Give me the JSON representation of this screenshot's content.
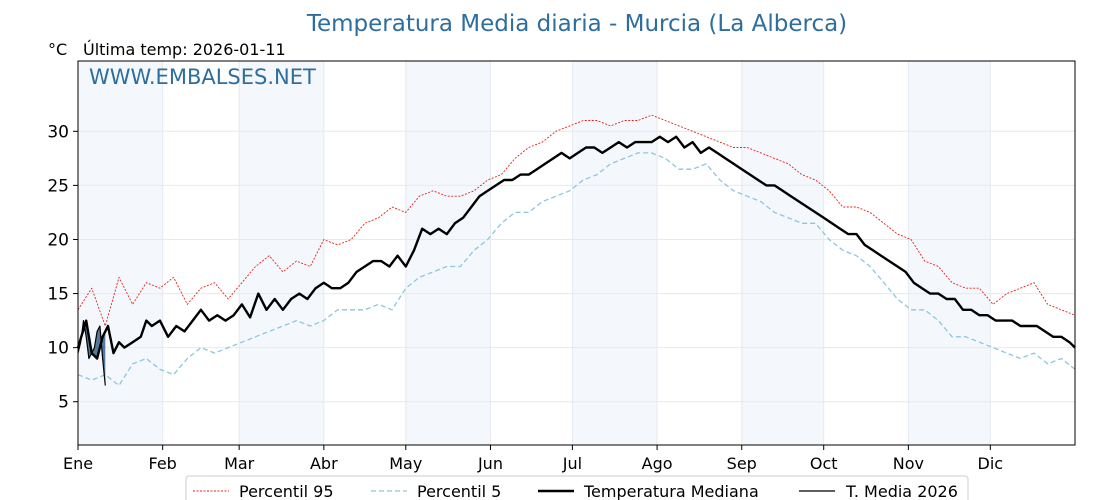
{
  "header": {
    "title": "Temperatura Media diaria - Murcia (La Alberca)",
    "unit": "°C",
    "last_temp": "Última temp: 2026-01-11",
    "watermark": "WWW.EMBALSES.NET"
  },
  "colors": {
    "title": "#2e6e9e",
    "p95": "#e8211d",
    "p5": "#8cc6dd",
    "median": "#000000",
    "current": "#000000",
    "current_fill": "#1f4f7a",
    "band": "#f4f8fc",
    "grid": "#e6eaee"
  },
  "chart_data": {
    "type": "line",
    "ylim": [
      1,
      36.5
    ],
    "yticks": [
      5,
      10,
      15,
      20,
      25,
      30
    ],
    "months": [
      "Ene",
      "Feb",
      "Mar",
      "Abr",
      "May",
      "Jun",
      "Jul",
      "Ago",
      "Sep",
      "Oct",
      "Nov",
      "Dic"
    ],
    "month_start_days": [
      1,
      32,
      60,
      91,
      121,
      152,
      182,
      213,
      244,
      274,
      305,
      335
    ],
    "grid": true,
    "legend_position": "bottom-center",
    "series": [
      {
        "name": "Percentil 95",
        "style": "dotted",
        "days": [
          1,
          6,
          11,
          16,
          21,
          26,
          31,
          36,
          41,
          46,
          51,
          56,
          61,
          66,
          71,
          76,
          81,
          86,
          91,
          96,
          101,
          106,
          111,
          116,
          121,
          126,
          131,
          136,
          141,
          146,
          151,
          156,
          161,
          166,
          171,
          176,
          181,
          186,
          191,
          196,
          201,
          206,
          211,
          216,
          221,
          226,
          231,
          236,
          241,
          246,
          251,
          256,
          261,
          266,
          271,
          276,
          281,
          286,
          291,
          296,
          301,
          306,
          311,
          316,
          321,
          326,
          331,
          336,
          341,
          346,
          351,
          356,
          361,
          366
        ],
        "values": [
          13.5,
          15.5,
          12.0,
          16.5,
          14.0,
          16.0,
          15.5,
          16.5,
          14.0,
          15.5,
          16.0,
          14.5,
          16.0,
          17.5,
          18.5,
          17.0,
          18.0,
          17.5,
          20.0,
          19.5,
          20.0,
          21.5,
          22.0,
          23.0,
          22.5,
          24.0,
          24.5,
          24.0,
          24.0,
          24.5,
          25.5,
          26.0,
          27.5,
          28.5,
          29.0,
          30.0,
          30.5,
          31.0,
          31.0,
          30.5,
          31.0,
          31.0,
          31.5,
          31.0,
          30.5,
          30.0,
          29.5,
          29.0,
          28.5,
          28.5,
          28.0,
          27.5,
          27.0,
          26.0,
          25.5,
          24.5,
          23.0,
          23.0,
          22.5,
          21.5,
          20.5,
          20.0,
          18.0,
          17.5,
          16.0,
          15.5,
          15.5,
          14.0,
          15.0,
          15.5,
          16.0,
          14.0,
          13.5,
          13.0
        ]
      },
      {
        "name": "Percentil 5",
        "style": "dashed",
        "days": [
          1,
          6,
          11,
          16,
          21,
          26,
          31,
          36,
          41,
          46,
          51,
          56,
          61,
          66,
          71,
          76,
          81,
          86,
          91,
          96,
          101,
          106,
          111,
          116,
          121,
          126,
          131,
          136,
          141,
          146,
          151,
          156,
          161,
          166,
          171,
          176,
          181,
          186,
          191,
          196,
          201,
          206,
          211,
          216,
          221,
          226,
          231,
          236,
          241,
          246,
          251,
          256,
          261,
          266,
          271,
          276,
          281,
          286,
          291,
          296,
          301,
          306,
          311,
          316,
          321,
          326,
          331,
          336,
          341,
          346,
          351,
          356,
          361,
          366
        ],
        "values": [
          7.5,
          7.0,
          7.5,
          6.5,
          8.5,
          9.0,
          8.0,
          7.5,
          9.0,
          10.0,
          9.5,
          10.0,
          10.5,
          11.0,
          11.5,
          12.0,
          12.5,
          12.0,
          12.5,
          13.5,
          13.5,
          13.5,
          14.0,
          13.5,
          15.5,
          16.5,
          17.0,
          17.5,
          17.5,
          19.0,
          20.0,
          21.5,
          22.5,
          22.5,
          23.5,
          24.0,
          24.5,
          25.5,
          26.0,
          27.0,
          27.5,
          28.0,
          28.0,
          27.5,
          26.5,
          26.5,
          27.0,
          25.5,
          24.5,
          24.0,
          23.5,
          22.5,
          22.0,
          21.5,
          21.5,
          20.0,
          19.0,
          18.5,
          17.5,
          16.0,
          14.5,
          13.5,
          13.5,
          12.5,
          11.0,
          11.0,
          10.5,
          10.0,
          9.5,
          9.0,
          9.5,
          8.5,
          9.0,
          8.0
        ]
      },
      {
        "name": "Temperatura Mediana",
        "style": "solid-bold",
        "days": [
          1,
          4,
          6,
          8,
          10,
          12,
          14,
          16,
          18,
          21,
          24,
          26,
          28,
          31,
          34,
          37,
          40,
          43,
          46,
          49,
          52,
          55,
          58,
          61,
          64,
          67,
          70,
          73,
          76,
          79,
          82,
          85,
          88,
          91,
          94,
          97,
          100,
          103,
          106,
          109,
          112,
          115,
          118,
          121,
          124,
          127,
          130,
          133,
          136,
          139,
          142,
          145,
          148,
          151,
          154,
          157,
          160,
          163,
          166,
          169,
          172,
          175,
          178,
          181,
          184,
          187,
          190,
          193,
          196,
          199,
          202,
          205,
          208,
          211,
          214,
          217,
          220,
          223,
          226,
          229,
          232,
          235,
          238,
          241,
          244,
          247,
          250,
          253,
          256,
          259,
          262,
          265,
          268,
          271,
          274,
          277,
          280,
          283,
          286,
          289,
          292,
          295,
          298,
          301,
          304,
          307,
          310,
          313,
          316,
          319,
          322,
          325,
          328,
          331,
          334,
          337,
          340,
          343,
          346,
          349,
          352,
          355,
          358,
          361,
          364,
          366
        ],
        "values": [
          10.0,
          12.5,
          9.5,
          9.0,
          11.0,
          12.0,
          9.5,
          10.5,
          10.0,
          10.5,
          11.0,
          12.5,
          12.0,
          12.5,
          11.0,
          12.0,
          11.5,
          12.5,
          13.5,
          12.5,
          13.0,
          12.5,
          13.0,
          14.0,
          12.8,
          15.0,
          13.5,
          14.5,
          13.5,
          14.5,
          15.0,
          14.5,
          15.5,
          16.0,
          15.5,
          15.5,
          16.0,
          17.0,
          17.5,
          18.0,
          18.0,
          17.5,
          18.5,
          17.5,
          19.0,
          21.0,
          20.5,
          21.0,
          20.5,
          21.5,
          22.0,
          23.0,
          24.0,
          24.5,
          25.0,
          25.5,
          25.5,
          26.0,
          26.0,
          26.5,
          27.0,
          27.5,
          28.0,
          27.5,
          28.0,
          28.5,
          28.5,
          28.0,
          28.5,
          29.0,
          28.5,
          29.0,
          29.0,
          29.0,
          29.5,
          29.0,
          29.5,
          28.5,
          29.0,
          28.0,
          28.5,
          28.0,
          27.5,
          27.0,
          26.5,
          26.0,
          25.5,
          25.0,
          25.0,
          24.5,
          24.0,
          23.5,
          23.0,
          22.5,
          22.0,
          21.5,
          21.0,
          20.5,
          20.5,
          19.5,
          19.0,
          18.5,
          18.0,
          17.5,
          17.0,
          16.0,
          15.5,
          15.0,
          15.0,
          14.5,
          14.5,
          13.5,
          13.5,
          13.0,
          13.0,
          12.5,
          12.5,
          12.5,
          12.0,
          12.0,
          12.0,
          11.5,
          11.0,
          11.0,
          10.5,
          10.0
        ]
      },
      {
        "name": "T. Media 2026",
        "style": "solid-thin",
        "days": [
          1,
          2,
          3,
          4,
          5,
          6,
          7,
          8,
          9,
          10,
          11
        ],
        "values": [
          9.5,
          10.5,
          12.5,
          11.0,
          9.0,
          9.5,
          10.0,
          11.5,
          12.0,
          9.0,
          6.5
        ]
      }
    ]
  }
}
